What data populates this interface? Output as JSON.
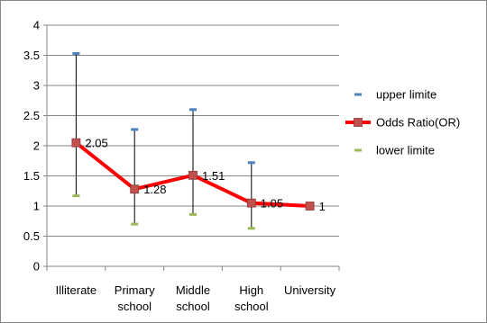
{
  "chart_data": {
    "type": "line",
    "title": "",
    "xlabel": "",
    "ylabel": "",
    "ylim": [
      0,
      4
    ],
    "y_ticks": [
      "0",
      "0.5",
      "1",
      "1.5",
      "2",
      "2.5",
      "3",
      "3.5",
      "4"
    ],
    "y_tick_values": [
      0,
      0.5,
      1,
      1.5,
      2,
      2.5,
      3,
      3.5,
      4
    ],
    "grid": "horizontal",
    "legend_position": "right",
    "categories": [
      [
        "Illiterate"
      ],
      [
        "Primary",
        "school"
      ],
      [
        "Middle",
        "school"
      ],
      [
        "High",
        "school"
      ],
      [
        "University"
      ]
    ],
    "series": [
      {
        "name": "upper limite",
        "values": [
          3.53,
          2.27,
          2.6,
          1.72,
          1
        ],
        "color": "#4f81bd",
        "marker": "dash"
      },
      {
        "name": "Odds Ratio(OR)",
        "values": [
          2.05,
          1.28,
          1.51,
          1.05,
          1
        ],
        "labels": [
          "2.05",
          "1.28",
          "1.51",
          "1.05",
          "1"
        ],
        "color": "#ff0000",
        "marker_color": "#c0504d",
        "marker": "square"
      },
      {
        "name": "lower limite",
        "values": [
          1.17,
          0.7,
          0.86,
          0.63,
          1
        ],
        "color": "#9bbb59",
        "marker": "dash"
      }
    ]
  }
}
